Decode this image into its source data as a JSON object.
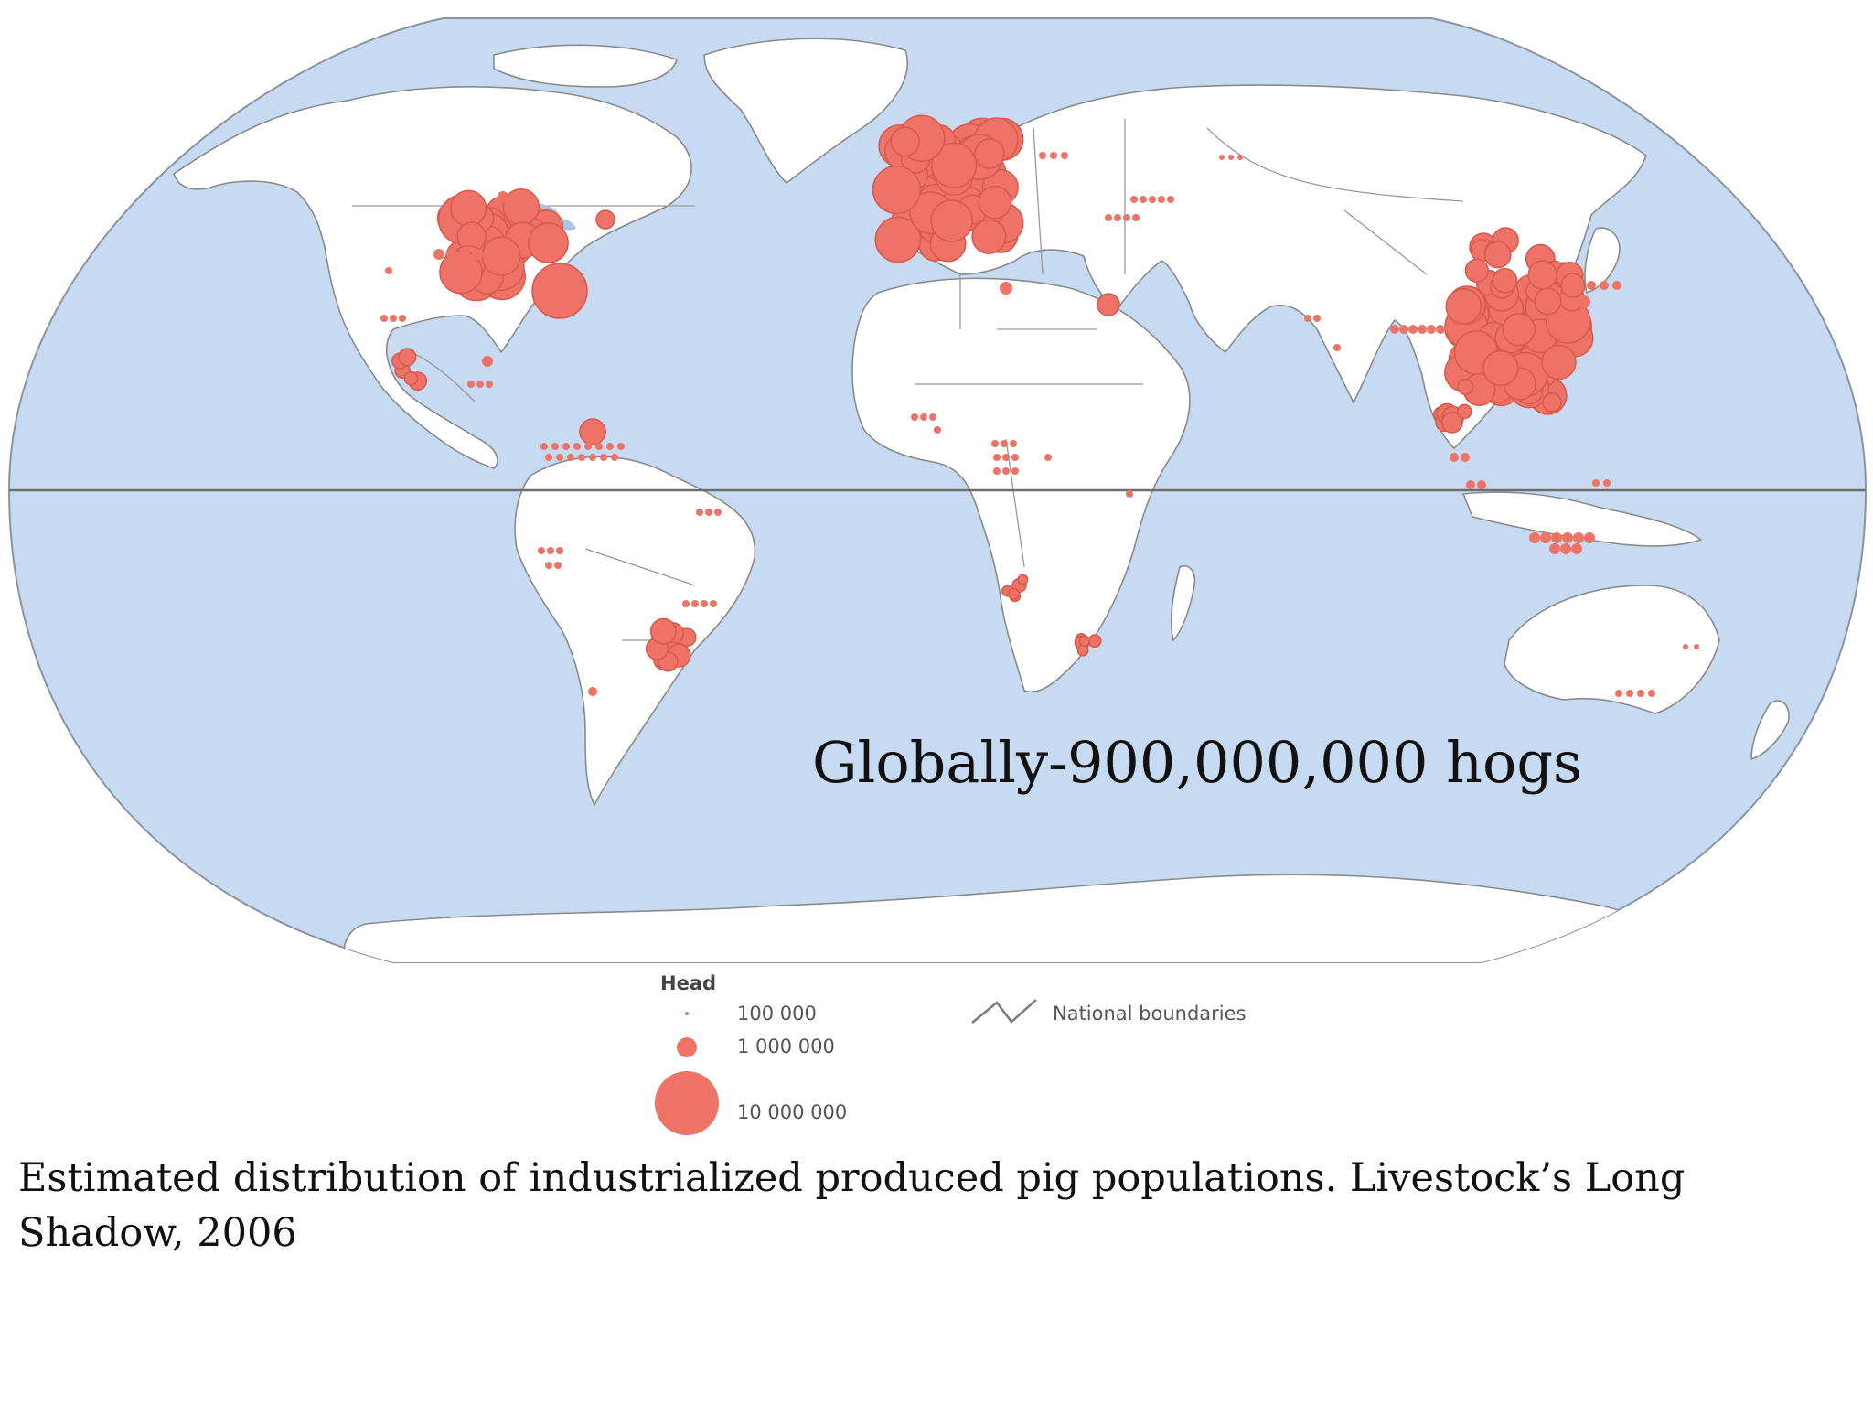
{
  "map": {
    "overlay_label": "Globally-900,000,000 hogs",
    "colors": {
      "ocean": "#c6dbf2",
      "land": "#ffffff",
      "marker": "#ee7366",
      "boundary": "#9a9a9a"
    },
    "symbol": "proportional-circle",
    "legend": {
      "title": "Head",
      "sizes": [
        {
          "label": "100 000",
          "value": 100000
        },
        {
          "label": "1 000 000",
          "value": 1000000
        },
        {
          "label": "10 000 000",
          "value": 10000000
        }
      ],
      "boundary_label": "National boundaries",
      "boundary_icon": "boundary-line-icon"
    }
  },
  "caption": {
    "line1": "Estimated distribution of industrialized produced pig populations. Livestock’s Long",
    "line2": "Shadow, 2006"
  }
}
